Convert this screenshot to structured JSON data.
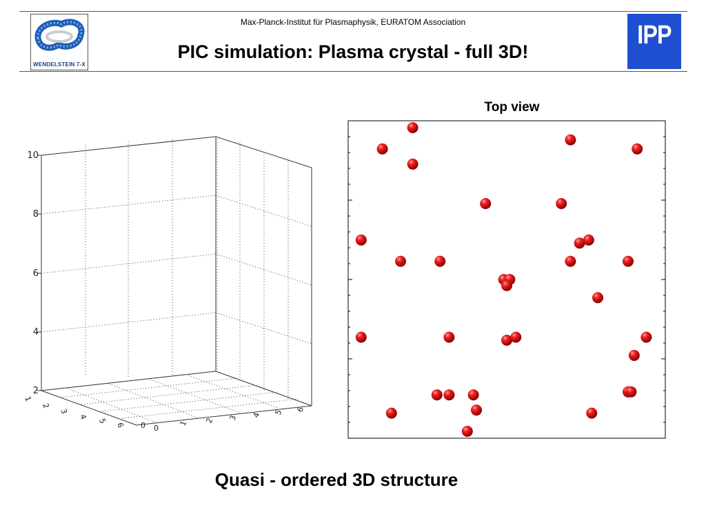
{
  "header": {
    "institute": "Max-Planck-Institut für Plasmaphysik, EURATOM Association",
    "title": "PIC simulation: Plasma crystal - full 3D!"
  },
  "logos": {
    "left_caption": "WENDELSTEIN 7-X",
    "right_text": "IPP",
    "right_color": "#1f4fd1"
  },
  "figure_3d": {
    "z_ticks": [
      "10",
      "8",
      "6",
      "4",
      "2"
    ],
    "x_ticks": [
      "1",
      "2",
      "3",
      "4",
      "5",
      "6",
      "0"
    ],
    "y_ticks": [
      "0",
      "1",
      "2",
      "3",
      "4",
      "5",
      "6"
    ]
  },
  "top_view": {
    "title": "Top view",
    "particle_color": "#e01010"
  },
  "caption": "Quasi - ordered 3D structure",
  "chart_data": {
    "type": "scatter",
    "title": "Top view",
    "xlim": [
      0,
      1
    ],
    "ylim": [
      0,
      1
    ],
    "grid": false,
    "points": [
      {
        "x": 0.19,
        "y": 1.0
      },
      {
        "x": 0.09,
        "y": 0.93
      },
      {
        "x": 0.19,
        "y": 0.88
      },
      {
        "x": 0.71,
        "y": 0.96
      },
      {
        "x": 0.93,
        "y": 0.93
      },
      {
        "x": 0.43,
        "y": 0.75
      },
      {
        "x": 0.68,
        "y": 0.75
      },
      {
        "x": 0.02,
        "y": 0.63
      },
      {
        "x": 0.15,
        "y": 0.56
      },
      {
        "x": 0.28,
        "y": 0.56
      },
      {
        "x": 0.71,
        "y": 0.56
      },
      {
        "x": 0.74,
        "y": 0.62
      },
      {
        "x": 0.77,
        "y": 0.63
      },
      {
        "x": 0.9,
        "y": 0.56
      },
      {
        "x": 0.49,
        "y": 0.5
      },
      {
        "x": 0.51,
        "y": 0.5
      },
      {
        "x": 0.5,
        "y": 0.48
      },
      {
        "x": 0.8,
        "y": 0.44
      },
      {
        "x": 0.02,
        "y": 0.31
      },
      {
        "x": 0.31,
        "y": 0.31
      },
      {
        "x": 0.5,
        "y": 0.3
      },
      {
        "x": 0.53,
        "y": 0.31
      },
      {
        "x": 0.96,
        "y": 0.31
      },
      {
        "x": 0.92,
        "y": 0.25
      },
      {
        "x": 0.27,
        "y": 0.12
      },
      {
        "x": 0.31,
        "y": 0.12
      },
      {
        "x": 0.39,
        "y": 0.12
      },
      {
        "x": 0.9,
        "y": 0.13
      },
      {
        "x": 0.91,
        "y": 0.13
      },
      {
        "x": 0.12,
        "y": 0.06
      },
      {
        "x": 0.4,
        "y": 0.07
      },
      {
        "x": 0.78,
        "y": 0.06
      },
      {
        "x": 0.37,
        "y": 0.0
      }
    ]
  }
}
